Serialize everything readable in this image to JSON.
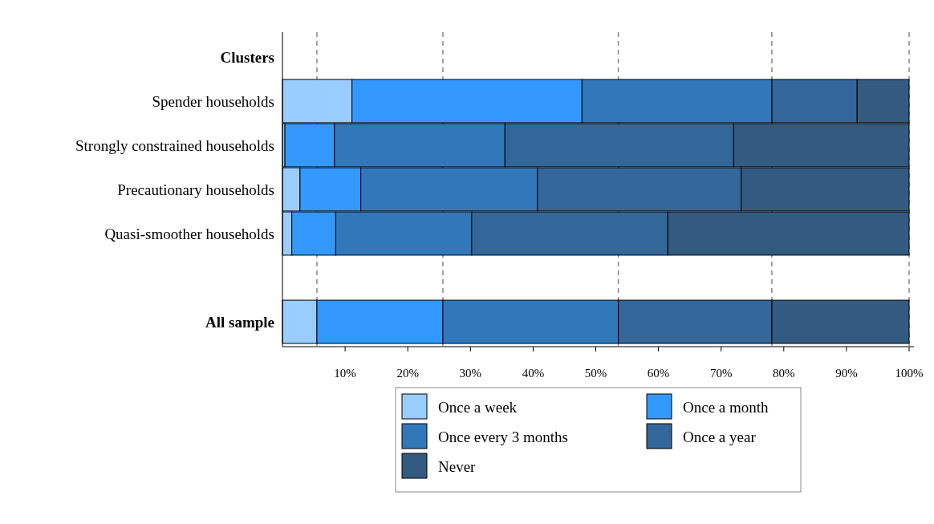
{
  "chart_data": {
    "type": "bar",
    "orientation": "horizontal",
    "stacked": true,
    "categories": [
      "Clusters",
      "Spender households",
      "Strongly constrained households",
      "Precautionary households",
      "Quasi-smoother households",
      null,
      "All sample"
    ],
    "series": [
      {
        "name": "Once a week",
        "color": "#99ccff",
        "values": [
          null,
          11.1,
          0.4,
          2.8,
          1.5,
          null,
          5.5
        ]
      },
      {
        "name": "Once a month",
        "color": "#3399ff",
        "values": [
          null,
          36.7,
          7.9,
          9.7,
          7.0,
          null,
          20.1
        ]
      },
      {
        "name": "Once every 3 months",
        "color": "#3377bb",
        "values": [
          null,
          30.3,
          27.2,
          28.2,
          21.7,
          null,
          28.0
        ]
      },
      {
        "name": "Once a year",
        "color": "#336699",
        "values": [
          null,
          13.6,
          36.5,
          32.5,
          31.3,
          null,
          24.5
        ]
      },
      {
        "name": "Never",
        "color": "#335a80",
        "values": [
          null,
          8.3,
          28.0,
          26.8,
          38.5,
          null,
          21.9
        ]
      }
    ],
    "xlim": [
      0,
      100
    ],
    "xticks": [
      {
        "value": 10,
        "label": "10%"
      },
      {
        "value": 20,
        "label": "20%"
      },
      {
        "value": 30,
        "label": "30%"
      },
      {
        "value": 40,
        "label": "40%"
      },
      {
        "value": 50,
        "label": "50%"
      },
      {
        "value": 60,
        "label": "60%"
      },
      {
        "value": 70,
        "label": "70%"
      },
      {
        "value": 80,
        "label": "80%"
      },
      {
        "value": 90,
        "label": "90%"
      },
      {
        "value": 100,
        "label": "100%"
      }
    ],
    "ref_lines": [
      {
        "axis": "x",
        "value": 5.5,
        "color": "#888888",
        "line_style": "dashed"
      },
      {
        "axis": "x",
        "value": 25.6,
        "color": "#888888",
        "line_style": "dashed"
      },
      {
        "axis": "x",
        "value": 53.6,
        "color": "#888888",
        "line_style": "dashed"
      },
      {
        "axis": "x",
        "value": 78.1,
        "color": "#888888",
        "line_style": "dashed"
      },
      {
        "axis": "x",
        "value": 100,
        "color": "#888888",
        "line_style": "dashed"
      }
    ],
    "grid": false,
    "legend": "bottom"
  }
}
